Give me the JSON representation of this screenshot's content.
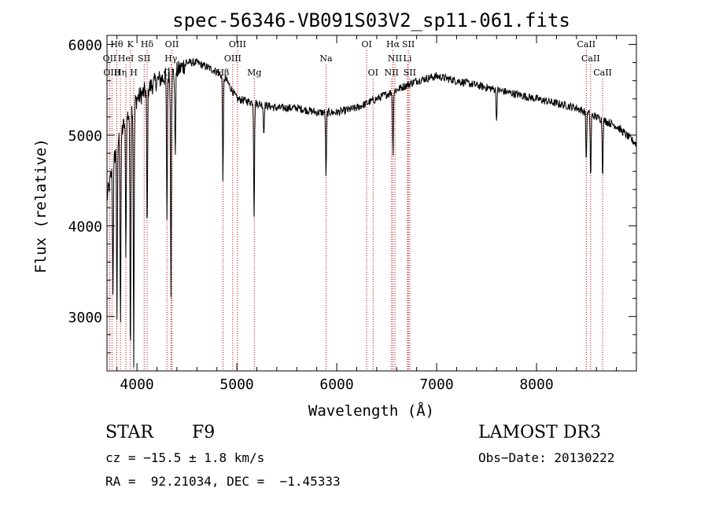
{
  "chart_data": {
    "type": "line",
    "title": "spec-56346-VB091S03V2_sp11-061.fits",
    "xlabel": "Wavelength (Å)",
    "ylabel": "Flux (relative)",
    "xlim": [
      3700,
      9000
    ],
    "ylim": [
      2400,
      6100
    ],
    "xticks": [
      4000,
      5000,
      6000,
      7000,
      8000
    ],
    "xtick_labels": [
      "4000",
      "5000",
      "6000",
      "7000",
      "8000"
    ],
    "yticks": [
      3000,
      4000,
      5000,
      6000
    ],
    "ytick_labels": [
      "3000",
      "4000",
      "5000",
      "6000"
    ],
    "continuum": {
      "x": [
        3700,
        3800,
        3900,
        4000,
        4100,
        4200,
        4300,
        4400,
        4500,
        4600,
        4700,
        4800,
        4900,
        5000,
        5200,
        5400,
        5600,
        5800,
        6000,
        6200,
        6400,
        6600,
        6800,
        7000,
        7200,
        7400,
        7600,
        7800,
        8000,
        8200,
        8400,
        8600,
        8800,
        9000
      ],
      "y": [
        4300,
        4900,
        5200,
        5400,
        5500,
        5600,
        5650,
        5700,
        5800,
        5800,
        5750,
        5700,
        5600,
        5400,
        5350,
        5300,
        5300,
        5250,
        5250,
        5300,
        5400,
        5500,
        5600,
        5650,
        5600,
        5550,
        5500,
        5450,
        5400,
        5350,
        5300,
        5200,
        5100,
        4900
      ]
    },
    "absorption_features": [
      {
        "x": 3760,
        "y": 3300
      },
      {
        "x": 3800,
        "y": 3000
      },
      {
        "x": 3835,
        "y": 2900
      },
      {
        "x": 3889,
        "y": 3700
      },
      {
        "x": 3934,
        "y": 2550
      },
      {
        "x": 3968,
        "y": 2500
      },
      {
        "x": 4102,
        "y": 3900
      },
      {
        "x": 4300,
        "y": 4000
      },
      {
        "x": 4340,
        "y": 3300
      },
      {
        "x": 4383,
        "y": 4800
      },
      {
        "x": 4861,
        "y": 4500
      },
      {
        "x": 5173,
        "y": 4100
      },
      {
        "x": 5270,
        "y": 5000
      },
      {
        "x": 5893,
        "y": 4550
      },
      {
        "x": 6563,
        "y": 4800
      },
      {
        "x": 7600,
        "y": 5150
      },
      {
        "x": 8498,
        "y": 4700
      },
      {
        "x": 8542,
        "y": 4500
      },
      {
        "x": 8662,
        "y": 4550
      }
    ],
    "spectral_lines": [
      {
        "label": "Hθ",
        "x": 3798,
        "row": 0
      },
      {
        "label": "K",
        "x": 3934,
        "row": 0
      },
      {
        "label": "Hδ",
        "x": 4102,
        "row": 0
      },
      {
        "label": "OII",
        "x": 4350,
        "row": 0
      },
      {
        "label": "OIII",
        "x": 5007,
        "row": 0
      },
      {
        "label": "OI",
        "x": 6300,
        "row": 0
      },
      {
        "label": "Hα",
        "x": 6563,
        "row": 0
      },
      {
        "label": "SII",
        "x": 6717,
        "row": 0
      },
      {
        "label": "CaII",
        "x": 8498,
        "row": 0
      },
      {
        "label": "OII",
        "x": 3727,
        "row": 1
      },
      {
        "label": "HeI",
        "x": 3889,
        "row": 1
      },
      {
        "label": "SII",
        "x": 4072,
        "row": 1
      },
      {
        "label": "Hγ",
        "x": 4340,
        "row": 1
      },
      {
        "label": "OIII",
        "x": 4959,
        "row": 1
      },
      {
        "label": "Na",
        "x": 5893,
        "row": 1
      },
      {
        "label": "NII",
        "x": 6583,
        "row": 1
      },
      {
        "label": "Li",
        "x": 6708,
        "row": 1
      },
      {
        "label": "CaII",
        "x": 8542,
        "row": 1
      },
      {
        "label": "OIII",
        "x": 3750,
        "row": 2
      },
      {
        "label": "Hη",
        "x": 3835,
        "row": 2
      },
      {
        "label": "H",
        "x": 3968,
        "row": 2
      },
      {
        "label": "G",
        "x": 4300,
        "row": 2
      },
      {
        "label": "Hβ",
        "x": 4861,
        "row": 2
      },
      {
        "label": "Mg",
        "x": 5175,
        "row": 2
      },
      {
        "label": "OI",
        "x": 6364,
        "row": 2
      },
      {
        "label": "NII",
        "x": 6548,
        "row": 2
      },
      {
        "label": "SII",
        "x": 6731,
        "row": 2
      },
      {
        "label": "CaII",
        "x": 8662,
        "row": 2
      }
    ]
  },
  "info": {
    "object_class": "STAR",
    "subclass": "F9",
    "survey": "LAMOST DR3",
    "redshift": "cz = −15.5 ± 1.8 km/s",
    "obs_date": "Obs−Date: 20130222",
    "coords": "RA =  92.21034, DEC =  −1.45333"
  },
  "colors": {
    "spectrum": "#000000",
    "line_marker": "#c00000",
    "axis": "#000000"
  }
}
